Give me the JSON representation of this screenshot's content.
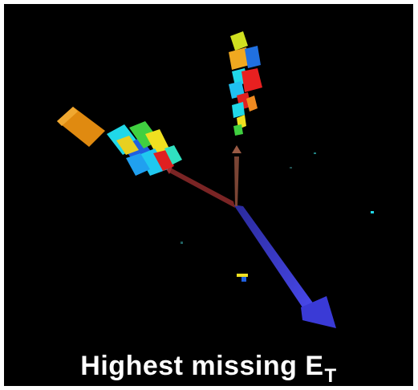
{
  "caption": {
    "main": "Highest missing E",
    "subscript": "T"
  },
  "colors": {
    "background": "#000000",
    "caption_text": "#ffffff",
    "missing_et_arrow": "#3a3ad6",
    "jet_arrow_left": "#8a2a2a",
    "jet_arrow_up": "#8a4a3a",
    "tower_orange": "#e08a10",
    "tower_cyan": "#20d8e8",
    "tower_red": "#e02020",
    "tower_yellow": "#f0e020",
    "tower_blue": "#2060e0",
    "tower_green": "#40d040"
  }
}
